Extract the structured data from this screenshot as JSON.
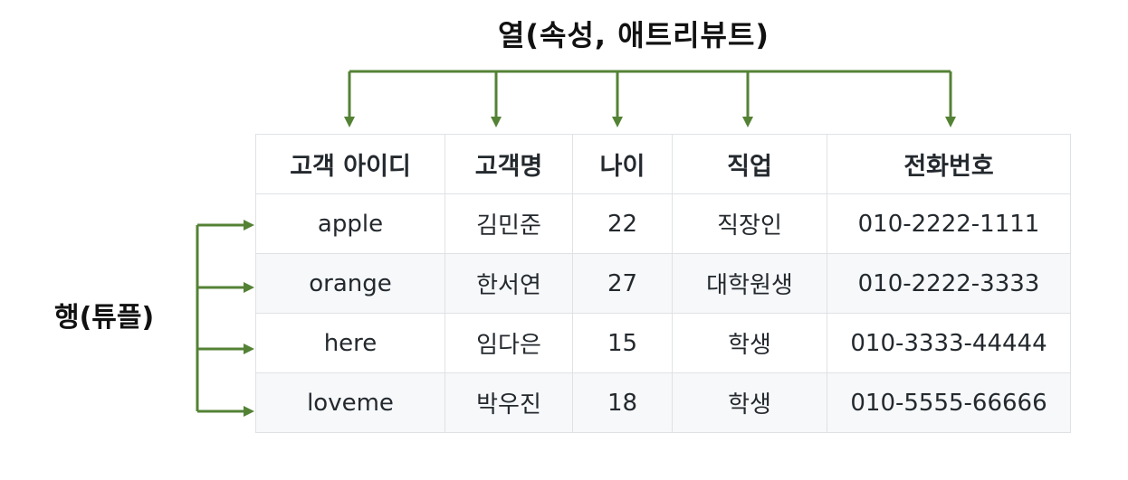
{
  "labels": {
    "columns_caption": "열(속성, 애트리뷰트)",
    "rows_caption": "행(튜플)"
  },
  "colors": {
    "arrow": "#548235",
    "table_border": "#dfe2e5",
    "row_stripe": "#f6f8fa"
  },
  "table": {
    "headers": [
      "고객 아이디",
      "고객명",
      "나이",
      "직업",
      "전화번호"
    ],
    "rows": [
      [
        "apple",
        "김민준",
        "22",
        "직장인",
        "010-2222-1111"
      ],
      [
        "orange",
        "한서연",
        "27",
        "대학원생",
        "010-2222-3333"
      ],
      [
        "here",
        "임다은",
        "15",
        "학생",
        "010-3333-44444"
      ],
      [
        "loveme",
        "박우진",
        "18",
        "학생",
        "010-5555-66666"
      ]
    ]
  }
}
